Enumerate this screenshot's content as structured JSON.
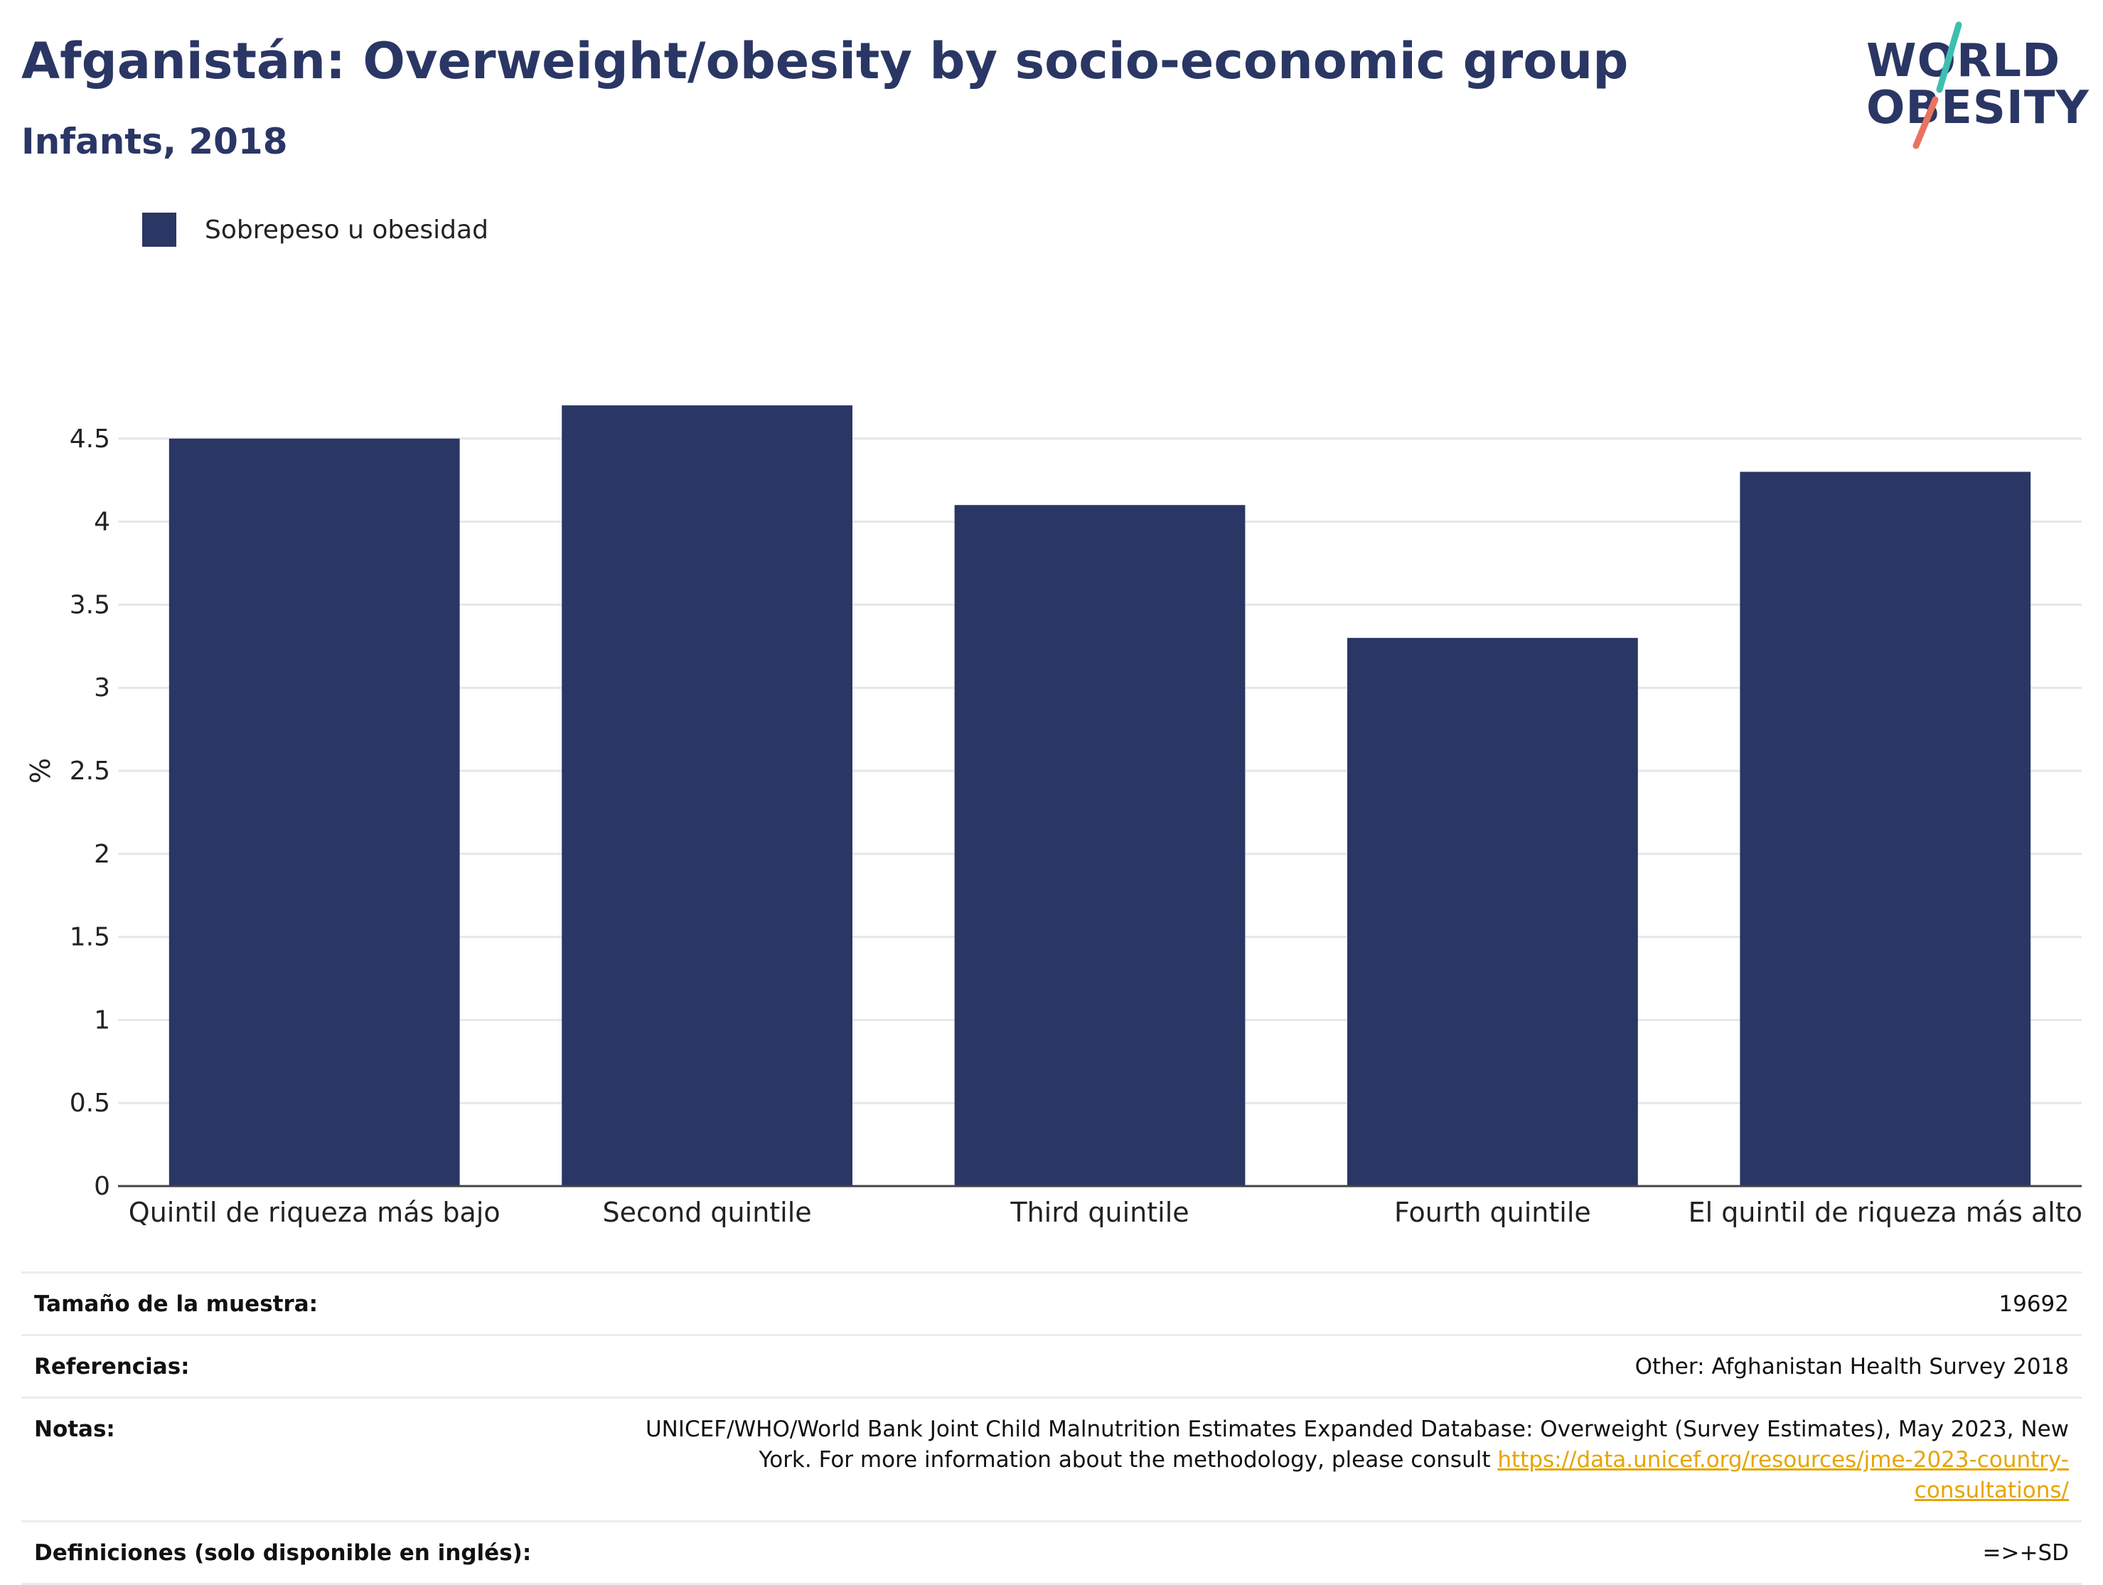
{
  "title": "Afganistán: Overweight/obesity by socio-economic group",
  "subtitle": "Infants, 2018",
  "logo": {
    "line1": "WORLD",
    "line2": "OBESITY",
    "colors": {
      "text": "#2a3664",
      "slash_top": "#3dbfb0",
      "slash_bottom": "#e8735f"
    }
  },
  "legend": {
    "label": "Sobrepeso u obesidad",
    "color": "#2a3664"
  },
  "chart_data": {
    "type": "bar",
    "categories": [
      "Quintil de riqueza más bajo",
      "Second quintile",
      "Third quintile",
      "Fourth quintile",
      "El quintil de riqueza más alto"
    ],
    "series": [
      {
        "name": "Sobrepeso u obesidad",
        "values": [
          4.5,
          4.7,
          4.1,
          3.3,
          4.3
        ],
        "color": "#2a3664"
      }
    ],
    "ylabel": "%",
    "xlabel": "",
    "ylim": [
      0,
      5
    ],
    "yticks": [
      "0",
      "0.5",
      "1",
      "1.5",
      "2",
      "2.5",
      "3",
      "3.5",
      "4",
      "4.5"
    ],
    "grid": true,
    "legend_position": "top-left"
  },
  "info": {
    "sample_size_label": "Tamaño de la muestra:",
    "sample_size_value": "19692",
    "references_label": "Referencias:",
    "references_value": "Other: Afghanistan Health Survey 2018",
    "notes_label": "Notas:",
    "notes_text": "UNICEF/WHO/World Bank Joint Child Malnutrition Estimates Expanded Database: Overweight (Survey Estimates), May 2023, New York. For more information about the methodology, please consult ",
    "notes_link": "https://data.unicef.org/resources/jme-2023-country-consultations/",
    "definitions_label": "Definiciones (solo disponible en inglés):",
    "definitions_value": "=>+SD"
  }
}
